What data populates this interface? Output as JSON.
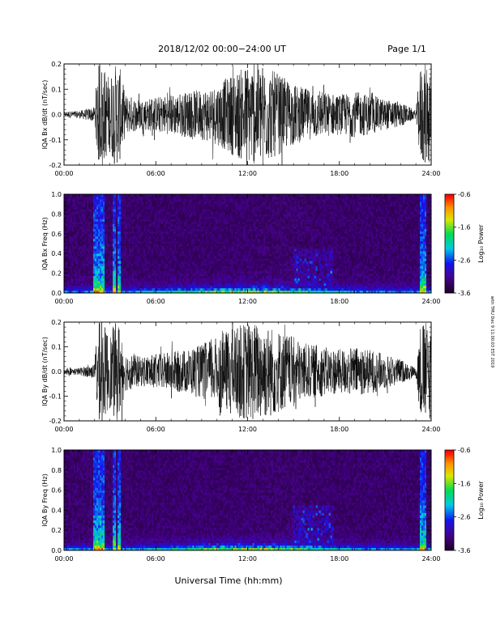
{
  "header": {
    "title": "2018/12/02  00:00−24:00 UT",
    "page": "Page 1/1"
  },
  "footer": {
    "xlabel": "Universal Time (hh:mm)",
    "stamp": "with TMU Dec 9 11:00:03 EST 2019"
  },
  "chart_data": [
    {
      "id": "bx-wave",
      "type": "line",
      "ylabel": "IQA Bx dB/dt (nT/sec)",
      "xlim": [
        0,
        24
      ],
      "ylim": [
        -0.2,
        0.2
      ],
      "xticks": [
        "00:00",
        "06:00",
        "12:00",
        "18:00",
        "24:00"
      ],
      "yticks": [
        "-0.2",
        "-0.1",
        "0.0",
        "0.1",
        "0.2"
      ],
      "series_color": "#000000",
      "envelope_hours": [
        0,
        1,
        2,
        2.2,
        2.5,
        3,
        3.3,
        3.6,
        4,
        5,
        6,
        7,
        8,
        9,
        10,
        11,
        12,
        13,
        14,
        15,
        16,
        17,
        18,
        19,
        20,
        21,
        22,
        23,
        23.3,
        23.5,
        24
      ],
      "envelope_amplitude": [
        0.012,
        0.015,
        0.03,
        0.2,
        0.2,
        0.15,
        0.2,
        0.2,
        0.08,
        0.06,
        0.07,
        0.08,
        0.09,
        0.1,
        0.12,
        0.16,
        0.2,
        0.2,
        0.16,
        0.12,
        0.1,
        0.09,
        0.08,
        0.09,
        0.08,
        0.06,
        0.05,
        0.015,
        0.2,
        0.2,
        0.2
      ]
    },
    {
      "id": "bx-spec",
      "type": "heatmap",
      "ylabel": "IQA Bx Freq (Hz)",
      "xlim": [
        0,
        24
      ],
      "ylim": [
        0,
        1.0
      ],
      "xticks": [
        "00:00",
        "06:00",
        "12:00",
        "18:00",
        "24:00"
      ],
      "yticks": [
        "0.0",
        "0.2",
        "0.4",
        "0.6",
        "0.8",
        "1.0"
      ],
      "colorbar": {
        "label": "Log₁₀ Power",
        "ticks": [
          "-0.6",
          "-1.6",
          "-2.6",
          "-3.6"
        ],
        "range": [
          -3.6,
          -0.6
        ]
      }
    },
    {
      "id": "by-wave",
      "type": "line",
      "ylabel": "IQA By dB/dt (nT/sec)",
      "xlim": [
        0,
        24
      ],
      "ylim": [
        -0.2,
        0.2
      ],
      "xticks": [
        "00:00",
        "06:00",
        "12:00",
        "18:00",
        "24:00"
      ],
      "yticks": [
        "-0.2",
        "-0.1",
        "0.0",
        "0.1",
        "0.2"
      ],
      "series_color": "#000000",
      "envelope_hours": [
        0,
        1,
        2,
        2.2,
        2.5,
        3,
        3.3,
        3.6,
        4,
        5,
        6,
        7,
        8,
        9,
        10,
        11,
        12,
        13,
        14,
        15,
        16,
        17,
        18,
        19,
        20,
        21,
        22,
        23,
        23.3,
        23.5,
        24
      ],
      "envelope_amplitude": [
        0.012,
        0.015,
        0.03,
        0.2,
        0.2,
        0.15,
        0.2,
        0.2,
        0.08,
        0.06,
        0.07,
        0.08,
        0.09,
        0.11,
        0.14,
        0.18,
        0.2,
        0.2,
        0.17,
        0.14,
        0.11,
        0.1,
        0.09,
        0.1,
        0.09,
        0.07,
        0.05,
        0.015,
        0.2,
        0.2,
        0.2
      ]
    },
    {
      "id": "by-spec",
      "type": "heatmap",
      "ylabel": "IQA By Freq (Hz)",
      "xlim": [
        0,
        24
      ],
      "ylim": [
        0,
        1.0
      ],
      "xticks": [
        "00:00",
        "06:00",
        "12:00",
        "18:00",
        "24:00"
      ],
      "yticks": [
        "0.0",
        "0.2",
        "0.4",
        "0.6",
        "0.8",
        "1.0"
      ],
      "colorbar": {
        "label": "Log₁₀ Power",
        "ticks": [
          "-0.6",
          "-1.6",
          "-2.6",
          "-3.6"
        ],
        "range": [
          -3.6,
          -0.6
        ]
      }
    }
  ]
}
